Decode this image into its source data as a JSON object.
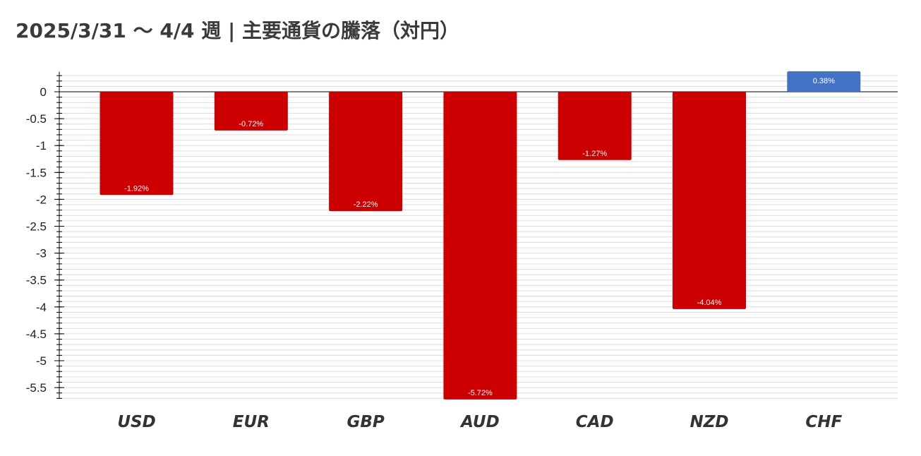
{
  "title": "2025/3/31 〜 4/4 週 | 主要通貨の騰落（対円）",
  "colors": {
    "negative": "#cc0000",
    "positive": "#4472c4",
    "grid_minor": "#dcdcdc",
    "axis": "#000000"
  },
  "chart_data": {
    "type": "bar",
    "title": "2025/3/31 〜 4/4 週 | 主要通貨の騰落（対円）",
    "xlabel": "",
    "ylabel": "",
    "categories": [
      "USD",
      "EUR",
      "GBP",
      "AUD",
      "CAD",
      "NZD",
      "CHF"
    ],
    "values": [
      -1.92,
      -0.72,
      -2.22,
      -5.72,
      -1.27,
      -4.04,
      0.38
    ],
    "data_labels": [
      "-1.92%",
      "-0.72%",
      "-2.22%",
      "-5.72%",
      "-1.27%",
      "-4.04%",
      "0.38%"
    ],
    "ylim": [
      -5.7,
      0.37
    ],
    "yticks": [
      0,
      -0.5,
      -1,
      -1.5,
      -2,
      -2.5,
      -3,
      -3.5,
      -4,
      -4.5,
      -5,
      -5.5
    ],
    "ytick_labels": [
      "0",
      "-0.5",
      "-1",
      "-1.5",
      "-2",
      "-2.5",
      "-3",
      "-3.5",
      "-4",
      "-4.5",
      "-5",
      "-5.5"
    ],
    "minor_grid_step": 0.1,
    "grid": true,
    "legend": "none"
  }
}
